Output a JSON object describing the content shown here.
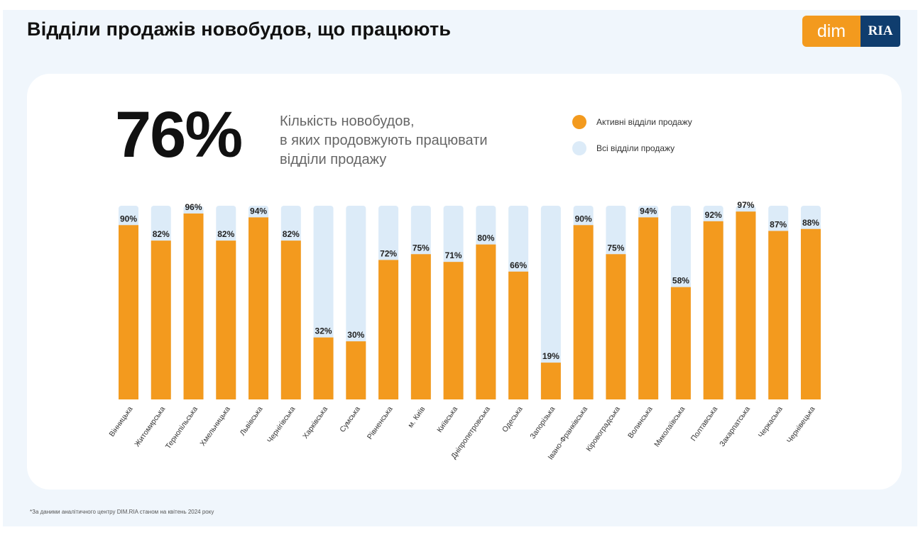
{
  "header": {
    "title": "Відділи продажів новобудов, що працюють",
    "logo_left": "dim",
    "logo_right": "RIA"
  },
  "summary": {
    "value": "76%",
    "caption_lines": [
      "Кількість новобудов,",
      "в яких продовжують працювати",
      "відділи продажу"
    ]
  },
  "legend": {
    "active_label": "Активні відділи продажу",
    "all_label": "Всі відділи продажу"
  },
  "colors": {
    "active": "#f39a1e",
    "all": "#dcebf8",
    "slide_bg": "#f0f6fc",
    "logo_ria": "#0f3d6e"
  },
  "footnote": "*За даними аналітичного центру DIM.RIA станом на квітень 2024 року",
  "chart_data": {
    "type": "bar",
    "categories": [
      "Вінницька",
      "Житомирська",
      "Тернопільська",
      "Хмельницька",
      "Львівська",
      "Чернігівська",
      "Харківська",
      "Сумська",
      "Рівненська",
      "м. Київ",
      "Київська",
      "Дніпропетровська",
      "Одеська",
      "Запорізька",
      "Івано-Франківська",
      "Кіровоградська",
      "Волинська",
      "Миколаївська",
      "Полтавська",
      "Закарпатська",
      "Черкаська",
      "Чернівецька"
    ],
    "series": [
      {
        "name": "Активні відділи продажу",
        "values": [
          90,
          82,
          96,
          82,
          94,
          82,
          32,
          30,
          72,
          75,
          71,
          80,
          66,
          19,
          90,
          75,
          94,
          58,
          92,
          97,
          87,
          88
        ]
      },
      {
        "name": "Всі відділи продажу",
        "values": [
          100,
          100,
          100,
          100,
          100,
          100,
          100,
          100,
          100,
          100,
          100,
          100,
          100,
          100,
          100,
          100,
          100,
          100,
          100,
          100,
          100,
          100
        ]
      }
    ],
    "value_suffix": "%",
    "ylim": [
      0,
      100
    ],
    "grid": false
  }
}
